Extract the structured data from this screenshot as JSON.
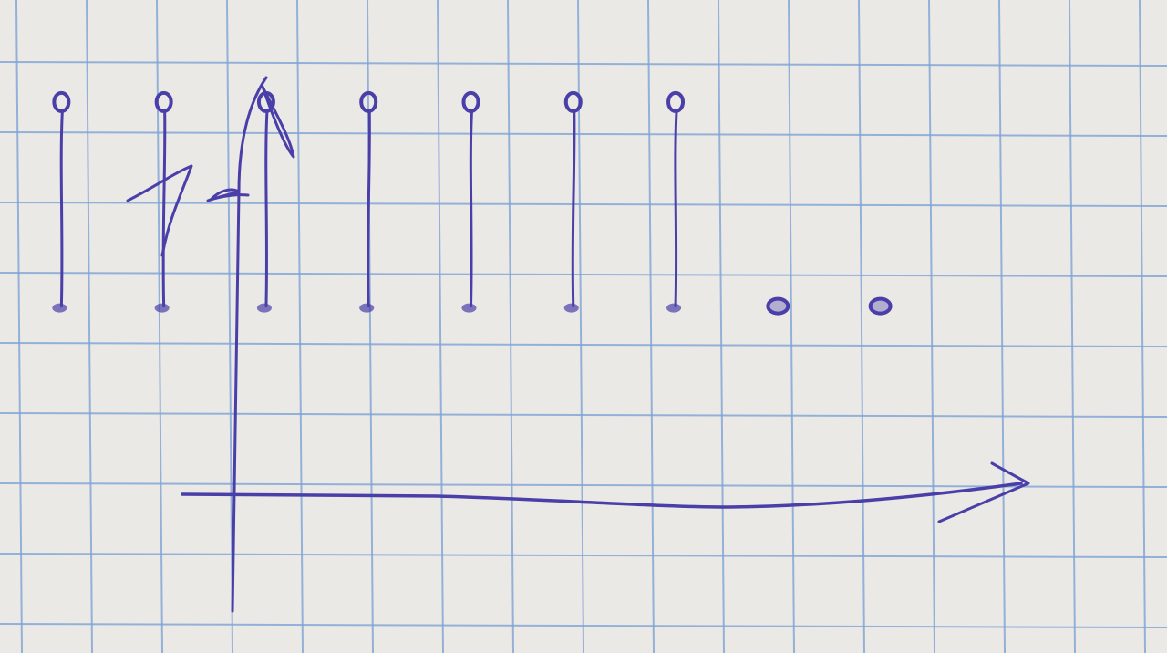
{
  "chart_data": {
    "type": "stem",
    "title": "",
    "xlabel": "",
    "ylabel": "",
    "y_axis_symbol": "",
    "x_axis_symbol": "",
    "grid": true,
    "x": [
      0,
      1,
      2,
      3,
      4,
      5,
      6,
      7,
      8
    ],
    "values": [
      1,
      1,
      1,
      1,
      1,
      1,
      1,
      0,
      0
    ],
    "xlim": [
      -0.6,
      10.8
    ],
    "ylim": [
      -1.7,
      1.5
    ],
    "colors": {
      "ink": "#4a3fa8",
      "grid": "#7ea3d6",
      "paper": "#ebe9e5"
    }
  }
}
